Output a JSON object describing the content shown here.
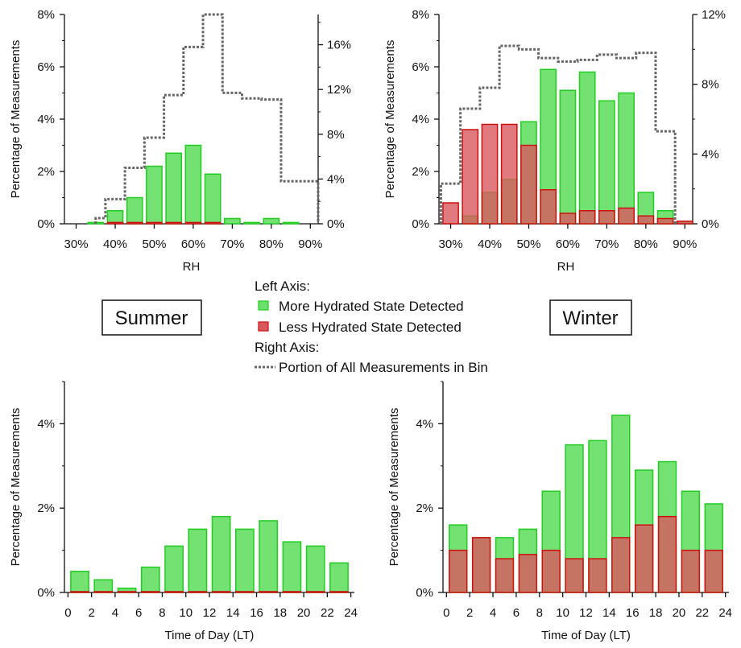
{
  "legend": {
    "left_axis_label": "Left Axis:",
    "right_axis_label": "Right Axis:",
    "more_hydrated": "More Hydrated State Detected",
    "less_hydrated": "Less Hydrated State Detected",
    "portion": "Portion of All Measurements in Bin"
  },
  "seasons": {
    "summer": "Summer",
    "winter": "Winter"
  },
  "colors": {
    "green_fill": "#6ce06c",
    "green_stroke": "#22cc22",
    "red_fill": "#d9595f",
    "red_stroke": "#cc1111",
    "step_line": "#666666"
  },
  "chart_data": [
    {
      "id": "summer-rh",
      "type": "bar",
      "xlabel": "RH",
      "ylabel": "Percentage of Measurements",
      "x_ticks": [
        30,
        40,
        50,
        60,
        70,
        80,
        90
      ],
      "x_tick_labels": [
        "30%",
        "40%",
        "50%",
        "60%",
        "70%",
        "80%",
        "90%"
      ],
      "xlim": [
        27,
        92
      ],
      "ylim": [
        0,
        8
      ],
      "y_ticks": [
        0,
        2,
        4,
        6,
        8
      ],
      "y_tick_labels": [
        "0%",
        "2%",
        "4%",
        "6%",
        "8%"
      ],
      "y2lim": [
        0,
        18.7
      ],
      "y2_ticks": [
        0,
        4,
        8,
        12,
        16
      ],
      "y2_tick_labels": [
        "0%",
        "4%",
        "8%",
        "12%",
        "16%"
      ],
      "bin_width": 5,
      "x": [
        30,
        35,
        40,
        45,
        50,
        55,
        60,
        65,
        70,
        75,
        80,
        85,
        90
      ],
      "series": [
        {
          "name": "More Hydrated State Detected",
          "values": [
            0,
            0.05,
            0.5,
            1.0,
            2.2,
            2.7,
            3.0,
            1.9,
            0.2,
            0.05,
            0.2,
            0.05,
            0
          ]
        },
        {
          "name": "Less Hydrated State Detected",
          "values": [
            0,
            0,
            0.05,
            0.05,
            0.05,
            0.05,
            0.05,
            0.05,
            0,
            0,
            0,
            0,
            0
          ]
        }
      ],
      "step": {
        "name": "Portion of All Measurements in Bin",
        "edges": [
          35,
          37.5,
          42.5,
          47.5,
          52.5,
          57.5,
          62.5,
          67.5,
          72.5,
          77.5,
          82.5,
          87.5,
          92
        ],
        "values": [
          0.5,
          2.2,
          5.0,
          7.7,
          11.5,
          15.8,
          18.7,
          11.7,
          11.2,
          11.1,
          3.8,
          3.8
        ]
      }
    },
    {
      "id": "winter-rh",
      "type": "bar",
      "xlabel": "RH",
      "ylabel": "Percentage of Measurements",
      "x_ticks": [
        30,
        40,
        50,
        60,
        70,
        80,
        90
      ],
      "x_tick_labels": [
        "30%",
        "40%",
        "50%",
        "60%",
        "70%",
        "80%",
        "90%"
      ],
      "xlim": [
        27,
        92
      ],
      "ylim": [
        0,
        8
      ],
      "y_ticks": [
        0,
        2,
        4,
        6,
        8
      ],
      "y_tick_labels": [
        "0%",
        "2%",
        "4%",
        "6%",
        "8%"
      ],
      "y2lim": [
        0,
        12
      ],
      "y2_ticks": [
        0,
        4,
        8,
        12
      ],
      "y2_tick_labels": [
        "0%",
        "4%",
        "8%",
        "12%"
      ],
      "bin_width": 5,
      "x": [
        30,
        35,
        40,
        45,
        50,
        55,
        60,
        65,
        70,
        75,
        80,
        85,
        90
      ],
      "series": [
        {
          "name": "More Hydrated State Detected",
          "values": [
            0,
            0.3,
            1.2,
            1.7,
            3.9,
            5.9,
            5.1,
            5.8,
            4.7,
            5.0,
            1.2,
            0.5,
            0.1
          ]
        },
        {
          "name": "Less Hydrated State Detected",
          "values": [
            0.8,
            3.6,
            3.8,
            3.8,
            3.0,
            1.3,
            0.4,
            0.5,
            0.5,
            0.6,
            0.3,
            0.2,
            0.1
          ]
        }
      ],
      "step": {
        "name": "Portion of All Measurements in Bin",
        "edges": [
          27.5,
          32.5,
          37.5,
          42.5,
          47.5,
          52.5,
          57.5,
          62.5,
          67.5,
          72.5,
          77.5,
          82.5,
          87.5
        ],
        "values": [
          2.3,
          6.6,
          7.8,
          10.2,
          10.0,
          9.5,
          9.3,
          9.4,
          9.7,
          9.5,
          9.8,
          5.3
        ]
      }
    },
    {
      "id": "summer-time",
      "type": "bar",
      "xlabel": "Time of Day (LT)",
      "ylabel": "Percentage of Measurements",
      "x_ticks": [
        0,
        2,
        4,
        6,
        8,
        10,
        12,
        14,
        16,
        18,
        20,
        22,
        24
      ],
      "x_tick_labels": [
        "0",
        "2",
        "4",
        "6",
        "8",
        "10",
        "12",
        "14",
        "16",
        "18",
        "20",
        "22",
        "24"
      ],
      "xlim": [
        -0.3,
        24.3
      ],
      "ylim": [
        0,
        5
      ],
      "y_ticks": [
        0,
        2,
        4
      ],
      "y_tick_labels": [
        "0%",
        "2%",
        "4%"
      ],
      "bin_width": 2,
      "x": [
        1,
        3,
        5,
        7,
        9,
        11,
        13,
        15,
        17,
        19,
        21,
        23
      ],
      "series": [
        {
          "name": "More Hydrated State Detected",
          "values": [
            0.5,
            0.3,
            0.1,
            0.6,
            1.1,
            1.5,
            1.8,
            1.5,
            1.7,
            1.2,
            1.1,
            0.7
          ]
        },
        {
          "name": "Less Hydrated State Detected",
          "values": [
            0.02,
            0.02,
            0.02,
            0.02,
            0.02,
            0.02,
            0.02,
            0.02,
            0.02,
            0.02,
            0.02,
            0.02
          ]
        }
      ]
    },
    {
      "id": "winter-time",
      "type": "bar",
      "xlabel": "Time of Day (LT)",
      "ylabel": "Percentage of Measurements",
      "x_ticks": [
        0,
        2,
        4,
        6,
        8,
        10,
        12,
        14,
        16,
        18,
        20,
        22,
        24
      ],
      "x_tick_labels": [
        "0",
        "2",
        "4",
        "6",
        "8",
        "10",
        "12",
        "14",
        "16",
        "18",
        "20",
        "22",
        "24"
      ],
      "xlim": [
        -0.3,
        24.3
      ],
      "ylim": [
        0,
        5
      ],
      "y_ticks": [
        0,
        2,
        4
      ],
      "y_tick_labels": [
        "0%",
        "2%",
        "4%"
      ],
      "bin_width": 2,
      "x": [
        1,
        3,
        5,
        7,
        9,
        11,
        13,
        15,
        17,
        19,
        21,
        23
      ],
      "series": [
        {
          "name": "More Hydrated State Detected",
          "values": [
            1.6,
            1.3,
            1.3,
            1.5,
            2.4,
            3.5,
            3.6,
            4.2,
            2.9,
            3.1,
            2.4,
            2.1
          ]
        },
        {
          "name": "Less Hydrated State Detected",
          "values": [
            1.0,
            1.3,
            0.8,
            0.9,
            1.0,
            0.8,
            0.8,
            1.3,
            1.6,
            1.8,
            1.0,
            1.0
          ]
        }
      ]
    }
  ]
}
